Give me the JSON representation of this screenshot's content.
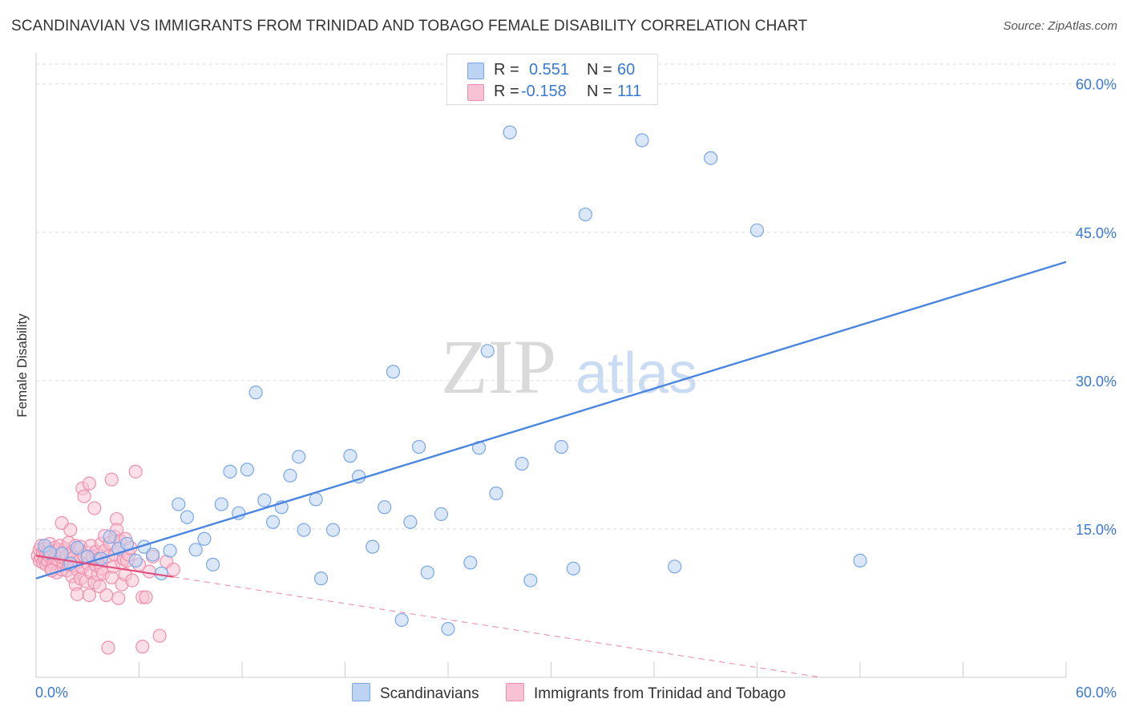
{
  "title": "SCANDINAVIAN VS IMMIGRANTS FROM TRINIDAD AND TOBAGO FEMALE DISABILITY CORRELATION CHART",
  "source": "Source: ZipAtlas.com",
  "watermark": {
    "zip": "ZIP",
    "atlas": "atlas"
  },
  "colors": {
    "blue": "#4a86e0",
    "blue_fill": "#bcd3f2",
    "blue_edge": "#7aa6e6",
    "blue_text": "#3a78d4",
    "pink": "#e05080",
    "pink_fill": "#f7c2d3",
    "pink_edge": "#ef8fac"
  },
  "legend": {
    "blue": {
      "r_label": "R =",
      "r_value": "0.551",
      "n_label": "N =",
      "n_value": "60"
    },
    "pink": {
      "r_label": "R =",
      "r_value": "-0.158",
      "n_label": "N =",
      "n_value": "111"
    }
  },
  "bottom_legend": {
    "blue": "Scandinavians",
    "pink": "Immigrants from Trinidad and Tobago"
  },
  "chart_data": {
    "type": "scatter",
    "title": "SCANDINAVIAN VS IMMIGRANTS FROM TRINIDAD AND TOBAGO FEMALE DISABILITY CORRELATION CHART",
    "xlabel": "",
    "ylabel": "Female Disability",
    "xlim": [
      0,
      60
    ],
    "ylim": [
      0,
      62
    ],
    "x_tick_labels": [
      "0.0%",
      "60.0%"
    ],
    "y_ticks": [
      15,
      30,
      45,
      60
    ],
    "y_tick_labels": [
      "15.0%",
      "30.0%",
      "45.0%",
      "60.0%"
    ],
    "grid": true,
    "legend_position": "top-center",
    "series": [
      {
        "name": "Scandinavians",
        "r": 0.551,
        "n": 60,
        "trend": {
          "x": [
            0,
            60
          ],
          "y": [
            10.0,
            42.0
          ],
          "style": "solid"
        },
        "points": [
          [
            0.5,
            13.3
          ],
          [
            1.5,
            12.5
          ],
          [
            2.0,
            11.5
          ],
          [
            3.0,
            12.2
          ],
          [
            3.8,
            12.0
          ],
          [
            4.3,
            14.2
          ],
          [
            4.8,
            13.0
          ],
          [
            5.3,
            13.5
          ],
          [
            5.8,
            11.8
          ],
          [
            6.3,
            13.2
          ],
          [
            6.8,
            12.4
          ],
          [
            7.3,
            10.5
          ],
          [
            7.8,
            12.8
          ],
          [
            8.3,
            17.5
          ],
          [
            8.8,
            16.2
          ],
          [
            9.3,
            12.9
          ],
          [
            9.8,
            14.0
          ],
          [
            10.3,
            11.4
          ],
          [
            10.8,
            17.5
          ],
          [
            11.3,
            20.8
          ],
          [
            11.8,
            16.6
          ],
          [
            12.3,
            21.0
          ],
          [
            12.8,
            28.8
          ],
          [
            13.3,
            17.9
          ],
          [
            13.8,
            15.7
          ],
          [
            14.3,
            17.2
          ],
          [
            14.8,
            20.4
          ],
          [
            15.3,
            22.3
          ],
          [
            15.6,
            14.9
          ],
          [
            16.3,
            18.0
          ],
          [
            16.6,
            10.0
          ],
          [
            17.3,
            14.9
          ],
          [
            18.3,
            22.4
          ],
          [
            18.8,
            20.3
          ],
          [
            19.6,
            13.2
          ],
          [
            20.3,
            17.2
          ],
          [
            20.8,
            30.9
          ],
          [
            21.3,
            5.8
          ],
          [
            21.8,
            15.7
          ],
          [
            22.3,
            23.3
          ],
          [
            22.8,
            10.6
          ],
          [
            23.6,
            16.5
          ],
          [
            24.0,
            4.9
          ],
          [
            25.3,
            11.6
          ],
          [
            25.8,
            23.2
          ],
          [
            26.3,
            33.0
          ],
          [
            26.8,
            18.6
          ],
          [
            27.6,
            55.1
          ],
          [
            28.3,
            21.6
          ],
          [
            28.8,
            9.8
          ],
          [
            30.6,
            23.3
          ],
          [
            31.3,
            11.0
          ],
          [
            32.0,
            46.8
          ],
          [
            35.3,
            54.3
          ],
          [
            37.2,
            11.2
          ],
          [
            39.3,
            52.5
          ],
          [
            42.0,
            45.2
          ],
          [
            48.0,
            11.8
          ],
          [
            0.8,
            12.6
          ],
          [
            2.4,
            13.1
          ]
        ]
      },
      {
        "name": "Immigrants from Trinidad and Tobago",
        "r": -0.158,
        "n": 111,
        "trend": {
          "x": [
            0,
            45.7
          ],
          "y": [
            12.3,
            0.0
          ],
          "solid_until_x": 8.0
        },
        "points": [
          [
            0.1,
            12.3
          ],
          [
            0.2,
            11.8
          ],
          [
            0.2,
            12.9
          ],
          [
            0.3,
            12.1
          ],
          [
            0.3,
            13.3
          ],
          [
            0.4,
            11.6
          ],
          [
            0.4,
            12.6
          ],
          [
            0.5,
            12.0
          ],
          [
            0.5,
            13.0
          ],
          [
            0.6,
            11.4
          ],
          [
            0.6,
            12.5
          ],
          [
            0.7,
            12.9
          ],
          [
            0.7,
            11.7
          ],
          [
            0.8,
            12.2
          ],
          [
            0.8,
            13.5
          ],
          [
            0.9,
            11.0
          ],
          [
            0.9,
            12.4
          ],
          [
            1.0,
            12.8
          ],
          [
            1.0,
            11.6
          ],
          [
            1.1,
            13.1
          ],
          [
            1.1,
            12.0
          ],
          [
            1.2,
            10.6
          ],
          [
            1.2,
            12.4
          ],
          [
            1.3,
            11.8
          ],
          [
            1.3,
            12.9
          ],
          [
            1.4,
            12.2
          ],
          [
            1.4,
            13.3
          ],
          [
            1.5,
            10.9
          ],
          [
            1.5,
            15.6
          ],
          [
            1.6,
            11.6
          ],
          [
            1.6,
            12.6
          ],
          [
            1.7,
            12.0
          ],
          [
            1.7,
            13.0
          ],
          [
            1.8,
            10.8
          ],
          [
            1.8,
            12.3
          ],
          [
            1.9,
            11.4
          ],
          [
            1.9,
            13.6
          ],
          [
            2.0,
            14.9
          ],
          [
            2.0,
            11.9
          ],
          [
            2.1,
            12.7
          ],
          [
            2.1,
            10.2
          ],
          [
            2.2,
            11.3
          ],
          [
            2.2,
            12.1
          ],
          [
            2.3,
            9.4
          ],
          [
            2.3,
            13.3
          ],
          [
            2.4,
            10.9
          ],
          [
            2.4,
            8.4
          ],
          [
            2.5,
            11.7
          ],
          [
            2.5,
            12.9
          ],
          [
            2.6,
            10.0
          ],
          [
            2.6,
            13.2
          ],
          [
            2.7,
            11.1
          ],
          [
            2.7,
            19.1
          ],
          [
            2.8,
            12.3
          ],
          [
            2.8,
            18.3
          ],
          [
            2.9,
            9.7
          ],
          [
            3.0,
            11.5
          ],
          [
            3.0,
            12.6
          ],
          [
            3.1,
            8.3
          ],
          [
            3.1,
            19.6
          ],
          [
            3.2,
            13.3
          ],
          [
            3.2,
            10.6
          ],
          [
            3.3,
            11.9
          ],
          [
            3.3,
            12.2
          ],
          [
            3.4,
            17.1
          ],
          [
            3.4,
            9.6
          ],
          [
            3.5,
            11.3
          ],
          [
            3.5,
            12.7
          ],
          [
            3.6,
            10.4
          ],
          [
            3.6,
            11.9
          ],
          [
            3.7,
            12.0
          ],
          [
            3.7,
            9.2
          ],
          [
            3.8,
            13.5
          ],
          [
            3.8,
            11.0
          ],
          [
            3.9,
            10.5
          ],
          [
            4.0,
            12.8
          ],
          [
            4.0,
            14.3
          ],
          [
            4.1,
            8.3
          ],
          [
            4.2,
            12.2
          ],
          [
            4.2,
            3.0
          ],
          [
            4.3,
            13.6
          ],
          [
            4.4,
            10.1
          ],
          [
            4.4,
            20.0
          ],
          [
            4.5,
            11.2
          ],
          [
            4.6,
            14.2
          ],
          [
            4.6,
            12.4
          ],
          [
            4.7,
            16.0
          ],
          [
            4.7,
            14.9
          ],
          [
            4.8,
            13.0
          ],
          [
            4.8,
            8.0
          ],
          [
            4.9,
            13.8
          ],
          [
            5.0,
            11.6
          ],
          [
            5.0,
            9.4
          ],
          [
            5.1,
            12.0
          ],
          [
            5.2,
            10.4
          ],
          [
            5.2,
            14.0
          ],
          [
            5.3,
            11.8
          ],
          [
            5.4,
            12.4
          ],
          [
            5.5,
            13.1
          ],
          [
            5.6,
            9.8
          ],
          [
            5.8,
            20.8
          ],
          [
            6.0,
            11.4
          ],
          [
            6.2,
            8.1
          ],
          [
            6.2,
            3.1
          ],
          [
            6.4,
            8.1
          ],
          [
            6.6,
            10.7
          ],
          [
            6.8,
            12.2
          ],
          [
            7.2,
            4.2
          ],
          [
            7.6,
            11.7
          ],
          [
            8.0,
            10.9
          ],
          [
            0.9,
            10.8
          ]
        ]
      }
    ]
  }
}
